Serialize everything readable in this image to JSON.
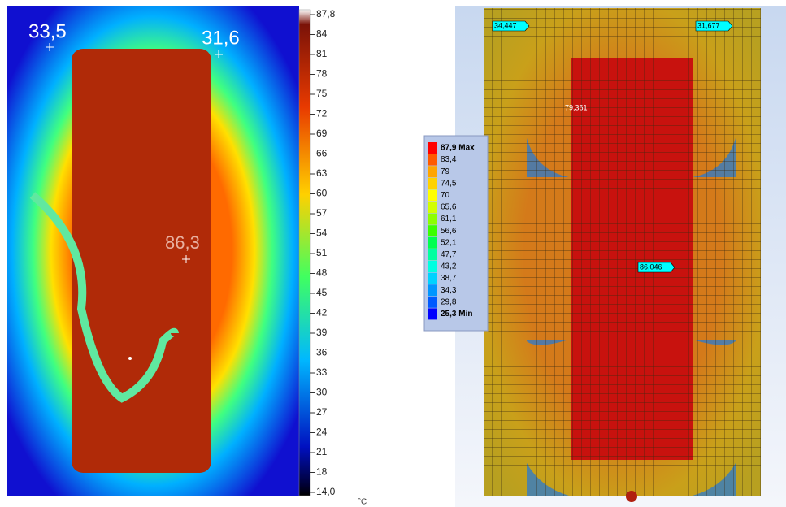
{
  "thermal_image": {
    "spot_labels": [
      "33,5",
      "31,6",
      "86,3"
    ],
    "scale_ticks": [
      "87,8",
      "84",
      "81",
      "78",
      "75",
      "72",
      "69",
      "66",
      "63",
      "60",
      "57",
      "54",
      "51",
      "48",
      "45",
      "42",
      "39",
      "36",
      "33",
      "30",
      "27",
      "24",
      "21",
      "18",
      "14,0"
    ],
    "unit": "°C"
  },
  "simulation": {
    "probe_labels": [
      "34,447",
      "31,677",
      "79,361",
      "86,046"
    ],
    "legend": {
      "entries": [
        "87,9 Max",
        "83,4",
        "79",
        "74,5",
        "70",
        "65,6",
        "61,1",
        "56,6",
        "52,1",
        "47,7",
        "43,2",
        "38,7",
        "34,3",
        "29,8",
        "25,3 Min"
      ],
      "colors": [
        "#ff0000",
        "#ff5a00",
        "#ffa500",
        "#ffd200",
        "#ffff00",
        "#d2ff00",
        "#8cff00",
        "#3cff00",
        "#00ff50",
        "#00ffa0",
        "#00ffe1",
        "#00d2ff",
        "#0096ff",
        "#005aff",
        "#0000ff"
      ]
    }
  }
}
